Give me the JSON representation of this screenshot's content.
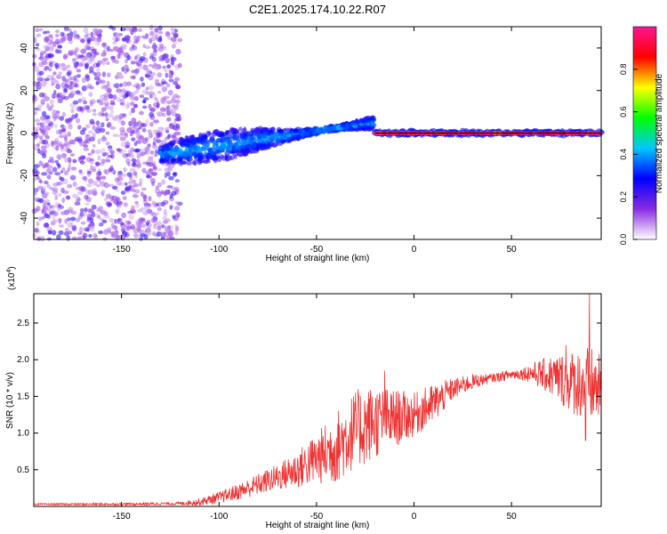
{
  "figure": {
    "title": "C2E1.2025.174.10.22.R07"
  },
  "chart_data": [
    {
      "type": "heatmap",
      "xlabel": "Height of straight line (km)",
      "ylabel": "Frequency (Hz)",
      "xlim": [
        -195,
        96
      ],
      "ylim": [
        -50,
        50
      ],
      "xticks": [
        -150,
        -100,
        -50,
        0,
        50
      ],
      "yticks": [
        -40,
        -20,
        0,
        20,
        40
      ],
      "colorbar": {
        "label": "Normalized spectral amplitude",
        "range": [
          0.0,
          1.0
        ],
        "ticks": [
          0.0,
          0.2,
          0.4,
          0.6,
          0.8
        ],
        "colormap": [
          "#ffffff",
          "#8a2be2",
          "#0000ff",
          "#00c8ff",
          "#00ff00",
          "#ffff00",
          "#ff0000",
          "#ff1493"
        ]
      },
      "regions": [
        {
          "name": "noise",
          "x": [
            -195,
            -120
          ],
          "f": [
            -50,
            50
          ],
          "amplitude": [
            0.1,
            0.25
          ]
        },
        {
          "name": "scatter-trend",
          "x": [
            -130,
            -20
          ],
          "f_start": -10,
          "f_end": 5,
          "amplitude": [
            0.2,
            0.45
          ]
        },
        {
          "name": "carrier",
          "x": [
            -20,
            96
          ],
          "f": 0,
          "amplitude": [
            0.8,
            1.0
          ]
        }
      ]
    },
    {
      "type": "line",
      "xlabel": "Height of straight line (km)",
      "ylabel": "SNR (10 * v/v)",
      "scale_label": "(x10",
      "scale_exp": "4",
      "xlim": [
        -195,
        96
      ],
      "ylim": [
        0.0,
        2.9
      ],
      "xticks": [
        -150,
        -100,
        -50,
        0,
        50
      ],
      "yticks": [
        0.5,
        1.0,
        1.5,
        2.0,
        2.5
      ],
      "color": "#ee3333",
      "baseline": [
        [
          -195,
          0.03
        ],
        [
          -150,
          0.03
        ],
        [
          -120,
          0.04
        ],
        [
          -110,
          0.06
        ],
        [
          -100,
          0.12
        ],
        [
          -90,
          0.2
        ],
        [
          -80,
          0.3
        ],
        [
          -70,
          0.4
        ],
        [
          -60,
          0.5
        ],
        [
          -50,
          0.65
        ],
        [
          -40,
          0.8
        ],
        [
          -30,
          1.05
        ],
        [
          -20,
          1.15
        ],
        [
          -10,
          1.2
        ],
        [
          0,
          1.25
        ],
        [
          10,
          1.4
        ],
        [
          20,
          1.6
        ],
        [
          30,
          1.7
        ],
        [
          40,
          1.75
        ],
        [
          50,
          1.8
        ],
        [
          60,
          1.82
        ],
        [
          70,
          1.78
        ],
        [
          80,
          1.7
        ],
        [
          90,
          1.65
        ],
        [
          96,
          1.6
        ]
      ],
      "noise_amplitude": [
        [
          -195,
          0.01
        ],
        [
          -120,
          0.02
        ],
        [
          -100,
          0.08
        ],
        [
          -70,
          0.18
        ],
        [
          -50,
          0.35
        ],
        [
          -40,
          0.5
        ],
        [
          -25,
          0.55
        ],
        [
          -10,
          0.4
        ],
        [
          0,
          0.3
        ],
        [
          10,
          0.28
        ],
        [
          20,
          0.15
        ],
        [
          40,
          0.06
        ],
        [
          55,
          0.08
        ],
        [
          65,
          0.2
        ],
        [
          75,
          0.35
        ],
        [
          90,
          0.55
        ],
        [
          96,
          0.45
        ]
      ],
      "peaks": [
        [
          90,
          2.9
        ],
        [
          88,
          0.9
        ],
        [
          78,
          2.2
        ],
        [
          -15,
          1.85
        ]
      ]
    }
  ]
}
